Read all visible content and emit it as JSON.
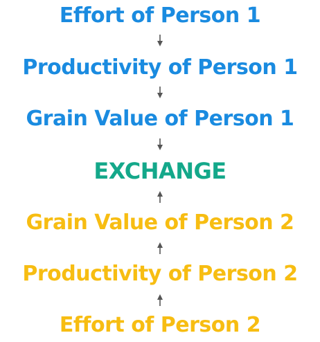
{
  "nodes": [
    {
      "label": "Effort of Person 1",
      "color": "#1a8be0"
    },
    {
      "label": "Productivity of Person 1",
      "color": "#1a8be0"
    },
    {
      "label": "Grain Value of Person 1",
      "color": "#1a8be0"
    },
    {
      "label": "EXCHANGE",
      "color": "#14a88a"
    },
    {
      "label": "Grain Value of Person 2",
      "color": "#f7bd12"
    },
    {
      "label": "Productivity of Person 2",
      "color": "#f7bd12"
    },
    {
      "label": "Effort of Person 2",
      "color": "#f7bd12"
    }
  ],
  "arrows": [
    {
      "direction": "down"
    },
    {
      "direction": "down"
    },
    {
      "direction": "down"
    },
    {
      "direction": "up"
    },
    {
      "direction": "up"
    },
    {
      "direction": "up"
    }
  ],
  "arrow_color": "#555555"
}
